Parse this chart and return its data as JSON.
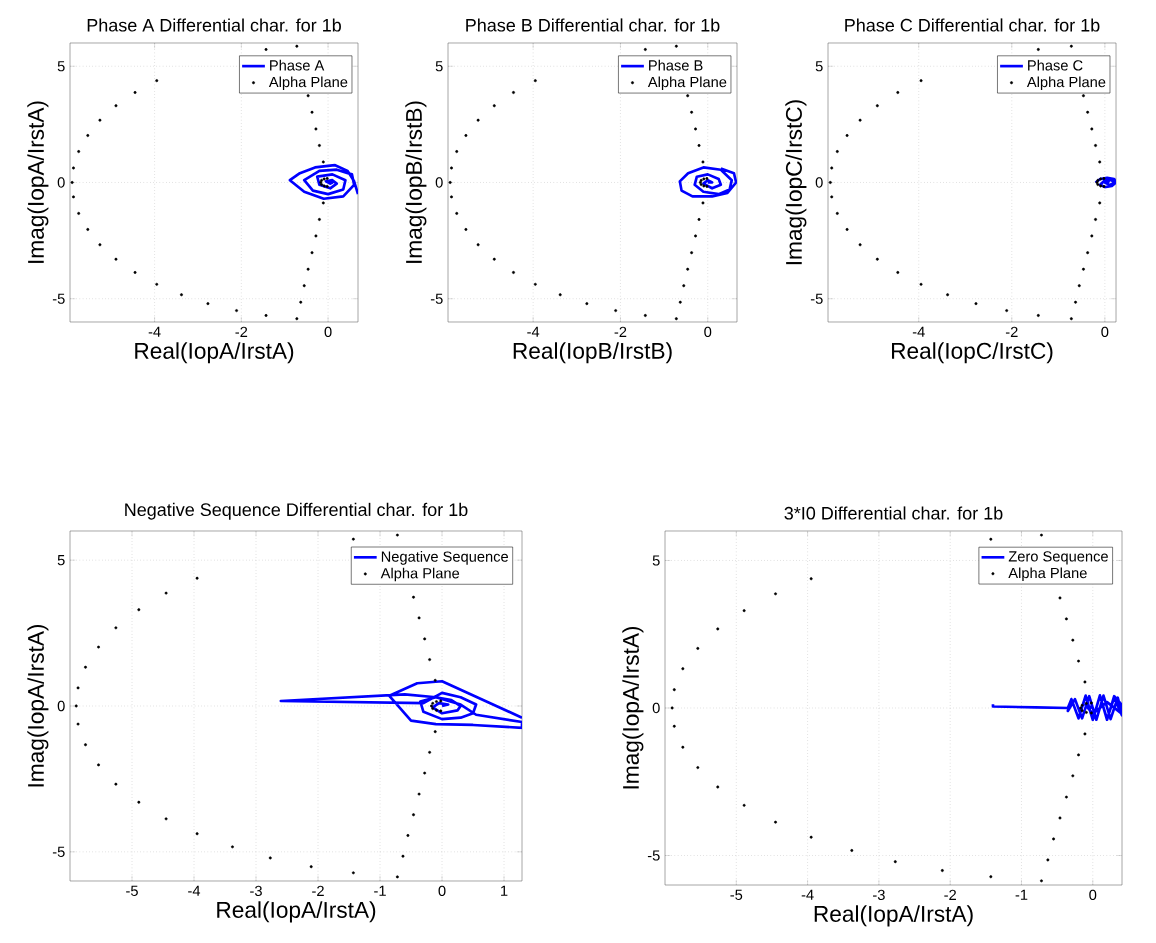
{
  "chart_data": [
    {
      "type": "line",
      "title": "Phase A Differential char. for 1b",
      "xlabel": "Real(IopA/IrstA)",
      "ylabel": "Imag(IopA/IrstA)",
      "xlim": [
        -5.95,
        0.69
      ],
      "ylim": [
        -6,
        6
      ],
      "xticks": [
        -4,
        -2,
        0
      ],
      "yticks": [
        -5,
        0,
        5
      ],
      "grid": true,
      "legend": "top right",
      "series": [
        {
          "name": "Phase A",
          "color": "#0000ff",
          "marker": "none",
          "x": [
            0.69,
            0.6,
            0.45,
            0.15,
            -0.3,
            -0.65,
            -0.88,
            -0.55,
            -0.1,
            0.35,
            0.6,
            0.55,
            0.2,
            -0.2,
            -0.55,
            -0.35,
            0.0,
            0.35,
            0.4,
            0.1,
            -0.25,
            -0.2,
            0.05,
            0.2,
            0.1,
            -0.05,
            0.05,
            0.1,
            0.0
          ],
          "values": [
            -0.5,
            0.05,
            0.5,
            0.75,
            0.65,
            0.4,
            0.1,
            -0.4,
            -0.7,
            -0.6,
            -0.1,
            0.35,
            0.55,
            0.5,
            0.1,
            -0.35,
            -0.5,
            -0.3,
            0.1,
            0.35,
            0.25,
            -0.1,
            -0.25,
            -0.05,
            0.1,
            0.05,
            -0.05,
            0.0,
            0.0
          ]
        },
        {
          "name": "Alpha Plane",
          "type": "scatter",
          "color": "#000000",
          "marker": "circle",
          "x": [
            -0.72,
            -1.43,
            -3.95,
            -4.45,
            -4.89,
            -5.26,
            -5.54,
            -5.75,
            -5.87,
            -5.9,
            -5.87,
            -5.75,
            -5.54,
            -5.26,
            -4.89,
            -4.45,
            -3.95,
            -3.38,
            -2.77,
            -2.11,
            -1.43,
            -0.72,
            -0.63,
            -0.55,
            -0.46,
            -0.37,
            -0.28,
            -0.2,
            -0.11,
            -0.02,
            -0.09,
            -0.15,
            -0.17,
            -0.15,
            -0.09,
            -0.02,
            -0.11,
            -0.2,
            -0.28,
            -0.37,
            -0.46
          ],
          "values": [
            5.86,
            5.72,
            4.38,
            3.87,
            3.3,
            2.68,
            2.02,
            1.33,
            0.62,
            0,
            -0.62,
            -1.33,
            -2.02,
            -2.68,
            -3.3,
            -3.87,
            -4.38,
            -4.83,
            -5.21,
            -5.51,
            -5.72,
            -5.86,
            -5.15,
            -4.44,
            -3.73,
            -3.02,
            -2.3,
            -1.59,
            -0.88,
            -0.17,
            -0.15,
            -0.09,
            0,
            0.09,
            0.15,
            0.17,
            0.88,
            1.59,
            2.3,
            3.02,
            3.73
          ]
        }
      ]
    },
    {
      "type": "line",
      "title": "Phase B Differential char. for 1b",
      "xlabel": "Real(IopB/IrstB)",
      "ylabel": "Imag(IopB/IrstB)",
      "xlim": [
        -5.95,
        0.67
      ],
      "ylim": [
        -6,
        6
      ],
      "xticks": [
        -4,
        -2,
        0
      ],
      "yticks": [
        -5,
        0,
        5
      ],
      "grid": true,
      "legend": "top right",
      "series": [
        {
          "name": "Phase B",
          "color": "#0000ff",
          "marker": "none",
          "x": [
            0.3,
            0.6,
            0.65,
            0.45,
            0.1,
            -0.35,
            -0.6,
            -0.64,
            -0.45,
            -0.1,
            0.3,
            0.55,
            0.5,
            0.25,
            -0.1,
            -0.3,
            -0.25,
            0.0,
            0.25,
            0.3,
            0.1,
            -0.1,
            0.0,
            0.1,
            0.0
          ],
          "values": [
            0.6,
            0.4,
            0.0,
            -0.45,
            -0.6,
            -0.6,
            -0.35,
            0.05,
            0.4,
            0.65,
            0.55,
            0.1,
            -0.3,
            -0.5,
            -0.4,
            -0.1,
            0.25,
            0.35,
            0.15,
            -0.1,
            -0.25,
            -0.05,
            0.1,
            0.0,
            0.0
          ]
        },
        {
          "name": "Alpha Plane",
          "type": "scatter",
          "color": "#000000",
          "marker": "circle",
          "x": [
            -0.72,
            -1.43,
            -3.95,
            -4.45,
            -4.89,
            -5.26,
            -5.54,
            -5.75,
            -5.87,
            -5.9,
            -5.87,
            -5.75,
            -5.54,
            -5.26,
            -4.89,
            -4.45,
            -3.95,
            -3.38,
            -2.77,
            -2.11,
            -1.43,
            -0.72,
            -0.63,
            -0.55,
            -0.46,
            -0.37,
            -0.28,
            -0.2,
            -0.11,
            -0.02,
            -0.09,
            -0.15,
            -0.17,
            -0.15,
            -0.09,
            -0.02,
            -0.11,
            -0.2,
            -0.28,
            -0.37,
            -0.46
          ],
          "values": [
            5.86,
            5.72,
            4.38,
            3.87,
            3.3,
            2.68,
            2.02,
            1.33,
            0.62,
            0,
            -0.62,
            -1.33,
            -2.02,
            -2.68,
            -3.3,
            -3.87,
            -4.38,
            -4.83,
            -5.21,
            -5.51,
            -5.72,
            -5.86,
            -5.15,
            -4.44,
            -3.73,
            -3.02,
            -2.3,
            -1.59,
            -0.88,
            -0.17,
            -0.15,
            -0.09,
            0,
            0.09,
            0.15,
            0.17,
            0.88,
            1.59,
            2.3,
            3.02,
            3.73
          ]
        }
      ]
    },
    {
      "type": "line",
      "title": "Phase C Differential char. for 1b",
      "xlabel": "Real(IopC/IrstC)",
      "ylabel": "Imag(IopC/IrstC)",
      "xlim": [
        -5.95,
        0.24
      ],
      "ylim": [
        -6,
        6
      ],
      "xticks": [
        -4,
        -2,
        0
      ],
      "yticks": [
        -5,
        0,
        5
      ],
      "grid": true,
      "legend": "top right",
      "series": [
        {
          "name": "Phase C",
          "color": "#0000ff",
          "marker": "none",
          "x": [
            -0.2,
            -0.1,
            0.05,
            0.2,
            0.24,
            0.15,
            0.0,
            -0.1,
            0.0,
            0.15,
            0.2,
            0.1,
            0.0,
            0.05,
            0.1
          ],
          "values": [
            0.0,
            0.15,
            0.2,
            0.15,
            0.0,
            -0.15,
            -0.2,
            -0.1,
            0.1,
            0.1,
            -0.05,
            -0.1,
            0.0,
            0.05,
            0.0
          ]
        },
        {
          "name": "Alpha Plane",
          "type": "scatter",
          "color": "#000000",
          "marker": "circle",
          "x": [
            -0.72,
            -1.43,
            -3.95,
            -4.45,
            -4.89,
            -5.26,
            -5.54,
            -5.75,
            -5.87,
            -5.9,
            -5.87,
            -5.75,
            -5.54,
            -5.26,
            -4.89,
            -4.45,
            -3.95,
            -3.38,
            -2.77,
            -2.11,
            -1.43,
            -0.72,
            -0.63,
            -0.55,
            -0.46,
            -0.37,
            -0.28,
            -0.2,
            -0.11,
            -0.02,
            -0.09,
            -0.15,
            -0.17,
            -0.15,
            -0.09,
            -0.02,
            -0.11,
            -0.2,
            -0.28,
            -0.37,
            -0.46
          ],
          "values": [
            5.86,
            5.72,
            4.38,
            3.87,
            3.3,
            2.68,
            2.02,
            1.33,
            0.62,
            0,
            -0.62,
            -1.33,
            -2.02,
            -2.68,
            -3.3,
            -3.87,
            -4.38,
            -4.83,
            -5.21,
            -5.51,
            -5.72,
            -5.86,
            -5.15,
            -4.44,
            -3.73,
            -3.02,
            -2.3,
            -1.59,
            -0.88,
            -0.17,
            -0.15,
            -0.09,
            0,
            0.09,
            0.15,
            0.17,
            0.88,
            1.59,
            2.3,
            3.02,
            3.73
          ]
        }
      ]
    },
    {
      "type": "line",
      "title": "Negative Sequence Differential char. for 1b",
      "xlabel": "Real(IopA/IrstA)",
      "ylabel": "Imag(IopA/IrstA)",
      "xlim": [
        -6,
        1.29
      ],
      "ylim": [
        -6,
        6
      ],
      "xticks": [
        -5,
        -4,
        -3,
        -2,
        -1,
        0,
        1
      ],
      "yticks": [
        -5,
        0,
        5
      ],
      "grid": true,
      "legend": "top right",
      "series": [
        {
          "name": "Negative Sequence",
          "color": "#0000ff",
          "marker": "none",
          "x": [
            1.29,
            0.0,
            -0.4,
            -0.85,
            -0.5,
            -0.1,
            0.5,
            1.29,
            1.29,
            0.55,
            0.3,
            -0.1,
            -0.6,
            -2.6,
            -0.3,
            0.0,
            0.3,
            0.55,
            0.5,
            0.3,
            0.0,
            -0.3,
            -0.35,
            -0.1,
            0.15,
            0.3,
            0.25,
            0.0,
            -0.15,
            -0.05,
            0.1,
            0.0
          ],
          "values": [
            -0.4,
            0.85,
            0.78,
            0.35,
            -0.5,
            -0.62,
            -0.65,
            -0.75,
            -0.55,
            -0.3,
            0.05,
            0.3,
            0.4,
            0.17,
            0.1,
            0.45,
            0.3,
            0.05,
            -0.25,
            -0.4,
            -0.45,
            -0.2,
            0.15,
            0.3,
            0.2,
            0.0,
            -0.15,
            -0.25,
            -0.05,
            0.1,
            0.05,
            0.0
          ]
        },
        {
          "name": "Alpha Plane",
          "type": "scatter",
          "color": "#000000",
          "marker": "circle",
          "x": [
            -0.72,
            -1.43,
            -3.95,
            -4.45,
            -4.89,
            -5.26,
            -5.54,
            -5.75,
            -5.87,
            -5.9,
            -5.87,
            -5.75,
            -5.54,
            -5.26,
            -4.89,
            -4.45,
            -3.95,
            -3.38,
            -2.77,
            -2.11,
            -1.43,
            -0.72,
            -0.63,
            -0.55,
            -0.46,
            -0.37,
            -0.28,
            -0.2,
            -0.11,
            -0.02,
            -0.09,
            -0.15,
            -0.17,
            -0.15,
            -0.09,
            -0.02,
            -0.11,
            -0.2,
            -0.28,
            -0.37,
            -0.46
          ],
          "values": [
            5.86,
            5.72,
            4.38,
            3.87,
            3.3,
            2.68,
            2.02,
            1.33,
            0.62,
            0,
            -0.62,
            -1.33,
            -2.02,
            -2.68,
            -3.3,
            -3.87,
            -4.38,
            -4.83,
            -5.21,
            -5.51,
            -5.72,
            -5.86,
            -5.15,
            -4.44,
            -3.73,
            -3.02,
            -2.3,
            -1.59,
            -0.88,
            -0.17,
            -0.15,
            -0.09,
            0,
            0.09,
            0.15,
            0.17,
            0.88,
            1.59,
            2.3,
            3.02,
            3.73
          ]
        }
      ]
    },
    {
      "type": "line",
      "title": "3*I0 Differential char. for 1b",
      "xlabel": "Real(IopA/IrstA)",
      "ylabel": "Imag(IopA/IrstA)",
      "xlim": [
        -6,
        0.41
      ],
      "ylim": [
        -6,
        6
      ],
      "xticks": [
        -5,
        -4,
        -3,
        -2,
        -1,
        0
      ],
      "yticks": [
        -5,
        0,
        5
      ],
      "grid": true,
      "legend": "top right",
      "series": [
        {
          "name": "Zero Sequence",
          "color": "#0000ff",
          "marker": "none",
          "x": [
            -1.4,
            -1.4,
            -0.8,
            -0.35,
            -0.3,
            -0.2,
            -0.1,
            0.0,
            0.1,
            0.2,
            0.3,
            0.41,
            0.41,
            0.3,
            0.2,
            0.1,
            0.0,
            -0.1,
            -0.2,
            -0.3,
            -0.35,
            -0.25,
            -0.15,
            -0.05,
            0.05,
            0.15,
            0.25,
            0.35,
            0.41,
            0.2,
            0.0,
            -0.1,
            0.0
          ],
          "values": [
            0.13,
            0.05,
            0.02,
            0.0,
            0.3,
            -0.35,
            0.42,
            -0.4,
            0.43,
            -0.4,
            0.4,
            0.1,
            -0.25,
            0.35,
            -0.38,
            0.42,
            -0.4,
            0.4,
            -0.35,
            0.3,
            -0.1,
            0.3,
            -0.35,
            0.4,
            -0.4,
            0.42,
            -0.38,
            0.35,
            -0.2,
            0.2,
            -0.2,
            0.1,
            0.0
          ]
        },
        {
          "name": "Alpha Plane",
          "type": "scatter",
          "color": "#000000",
          "marker": "circle",
          "x": [
            -0.72,
            -1.43,
            -3.95,
            -4.45,
            -4.89,
            -5.26,
            -5.54,
            -5.75,
            -5.87,
            -5.9,
            -5.87,
            -5.75,
            -5.54,
            -5.26,
            -4.89,
            -4.45,
            -3.95,
            -3.38,
            -2.77,
            -2.11,
            -1.43,
            -0.72,
            -0.63,
            -0.55,
            -0.46,
            -0.37,
            -0.28,
            -0.2,
            -0.11,
            -0.02,
            -0.09,
            -0.15,
            -0.17,
            -0.15,
            -0.09,
            -0.02,
            -0.11,
            -0.2,
            -0.28,
            -0.37,
            -0.46
          ],
          "values": [
            5.86,
            5.72,
            4.38,
            3.87,
            3.3,
            2.68,
            2.02,
            1.33,
            0.62,
            0,
            -0.62,
            -1.33,
            -2.02,
            -2.68,
            -3.3,
            -3.87,
            -4.38,
            -4.83,
            -5.21,
            -5.51,
            -5.72,
            -5.86,
            -5.15,
            -4.44,
            -3.73,
            -3.02,
            -2.3,
            -1.59,
            -0.88,
            -0.17,
            -0.15,
            -0.09,
            0,
            0.09,
            0.15,
            0.17,
            0.88,
            1.59,
            2.3,
            3.02,
            3.73
          ]
        }
      ]
    }
  ]
}
